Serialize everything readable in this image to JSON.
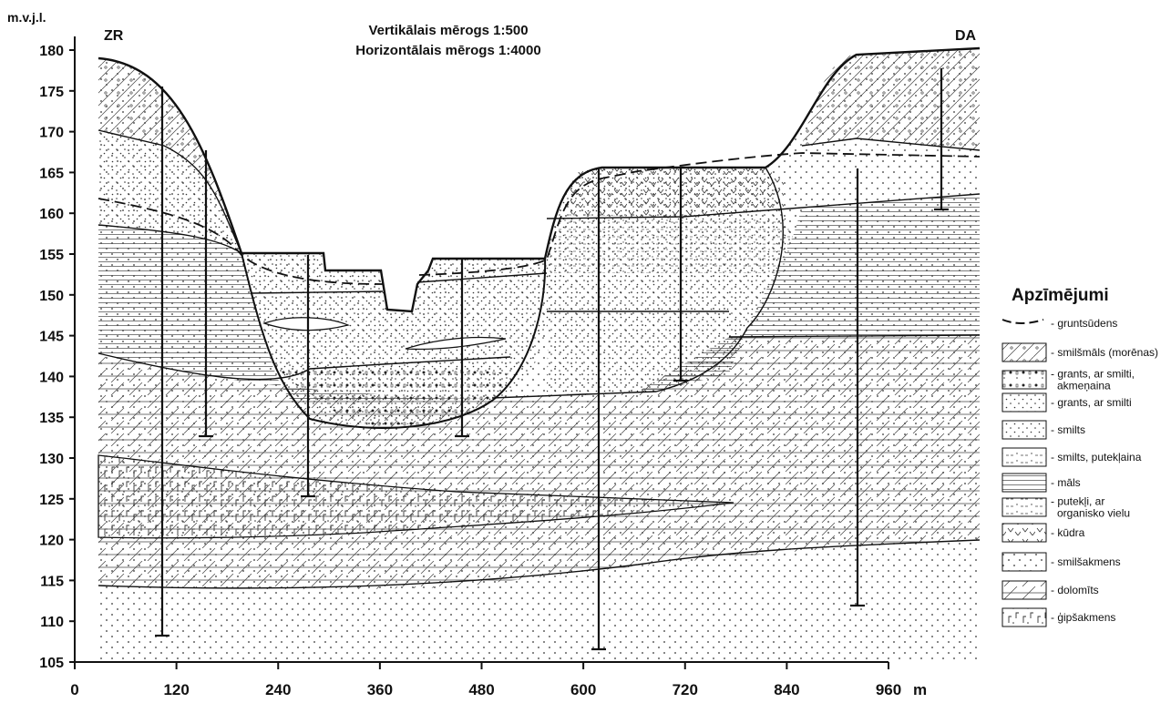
{
  "header": {
    "title_lines": [
      "Vertikālais mērogs 1:500",
      "Horizontālais mērogs 1:4000"
    ],
    "left_label": "ZR",
    "right_label": "DA"
  },
  "axes": {
    "y_unit": "m.v.j.l.",
    "yticks": [
      105,
      110,
      115,
      120,
      125,
      130,
      135,
      140,
      145,
      150,
      155,
      160,
      165,
      170,
      175,
      180
    ],
    "xticks": [
      0,
      120,
      240,
      360,
      480,
      600,
      720,
      840,
      960
    ],
    "x_unit": "m"
  },
  "legend": {
    "title": "Apzīmējumi",
    "items": [
      [
        "- gruntsūdens"
      ],
      [
        "- smilšmāls (morēnas)"
      ],
      [
        "- grants, ar smilti,",
        "akmeņaina"
      ],
      [
        "- grants, ar smilti"
      ],
      [
        "- smilts"
      ],
      [
        "- smilts, putekļaina"
      ],
      [
        "- māls"
      ],
      [
        "- putekļi, ar",
        "organisko vielu"
      ],
      [
        "- kūdra"
      ],
      [
        "- smilšakmens"
      ],
      [
        "- dolomīts"
      ],
      [
        "- ģipšakmens"
      ]
    ]
  }
}
